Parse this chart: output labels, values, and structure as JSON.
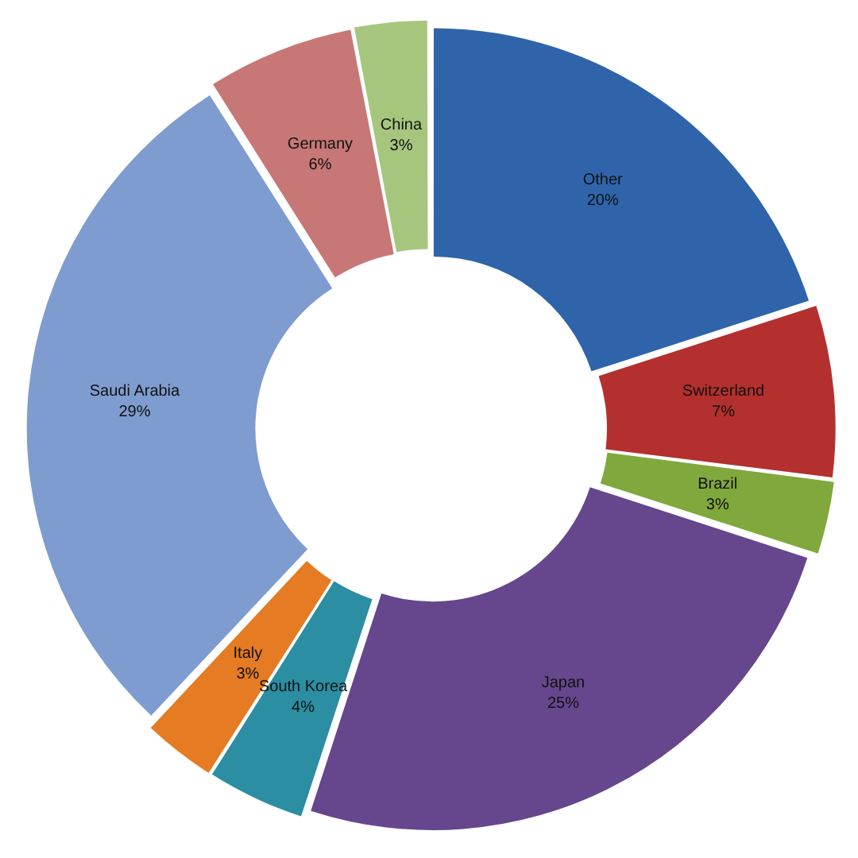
{
  "chart_data": {
    "type": "donut",
    "categories": [
      "Other",
      "Switzerland",
      "Brazil",
      "Japan",
      "South Korea",
      "Italy",
      "Saudi Arabia",
      "Germany",
      "China"
    ],
    "values": [
      20,
      7,
      3,
      25,
      4,
      3,
      29,
      6,
      3
    ],
    "value_labels": [
      "20%",
      "7%",
      "3%",
      "25%",
      "4%",
      "3%",
      "29%",
      "6%",
      "3%"
    ],
    "colors": [
      "#2f64ab",
      "#b3302e",
      "#80a83c",
      "#66468c",
      "#2b8ea3",
      "#e57b22",
      "#7e9ccf",
      "#c77775",
      "#a6c67e"
    ],
    "legend": false
  }
}
